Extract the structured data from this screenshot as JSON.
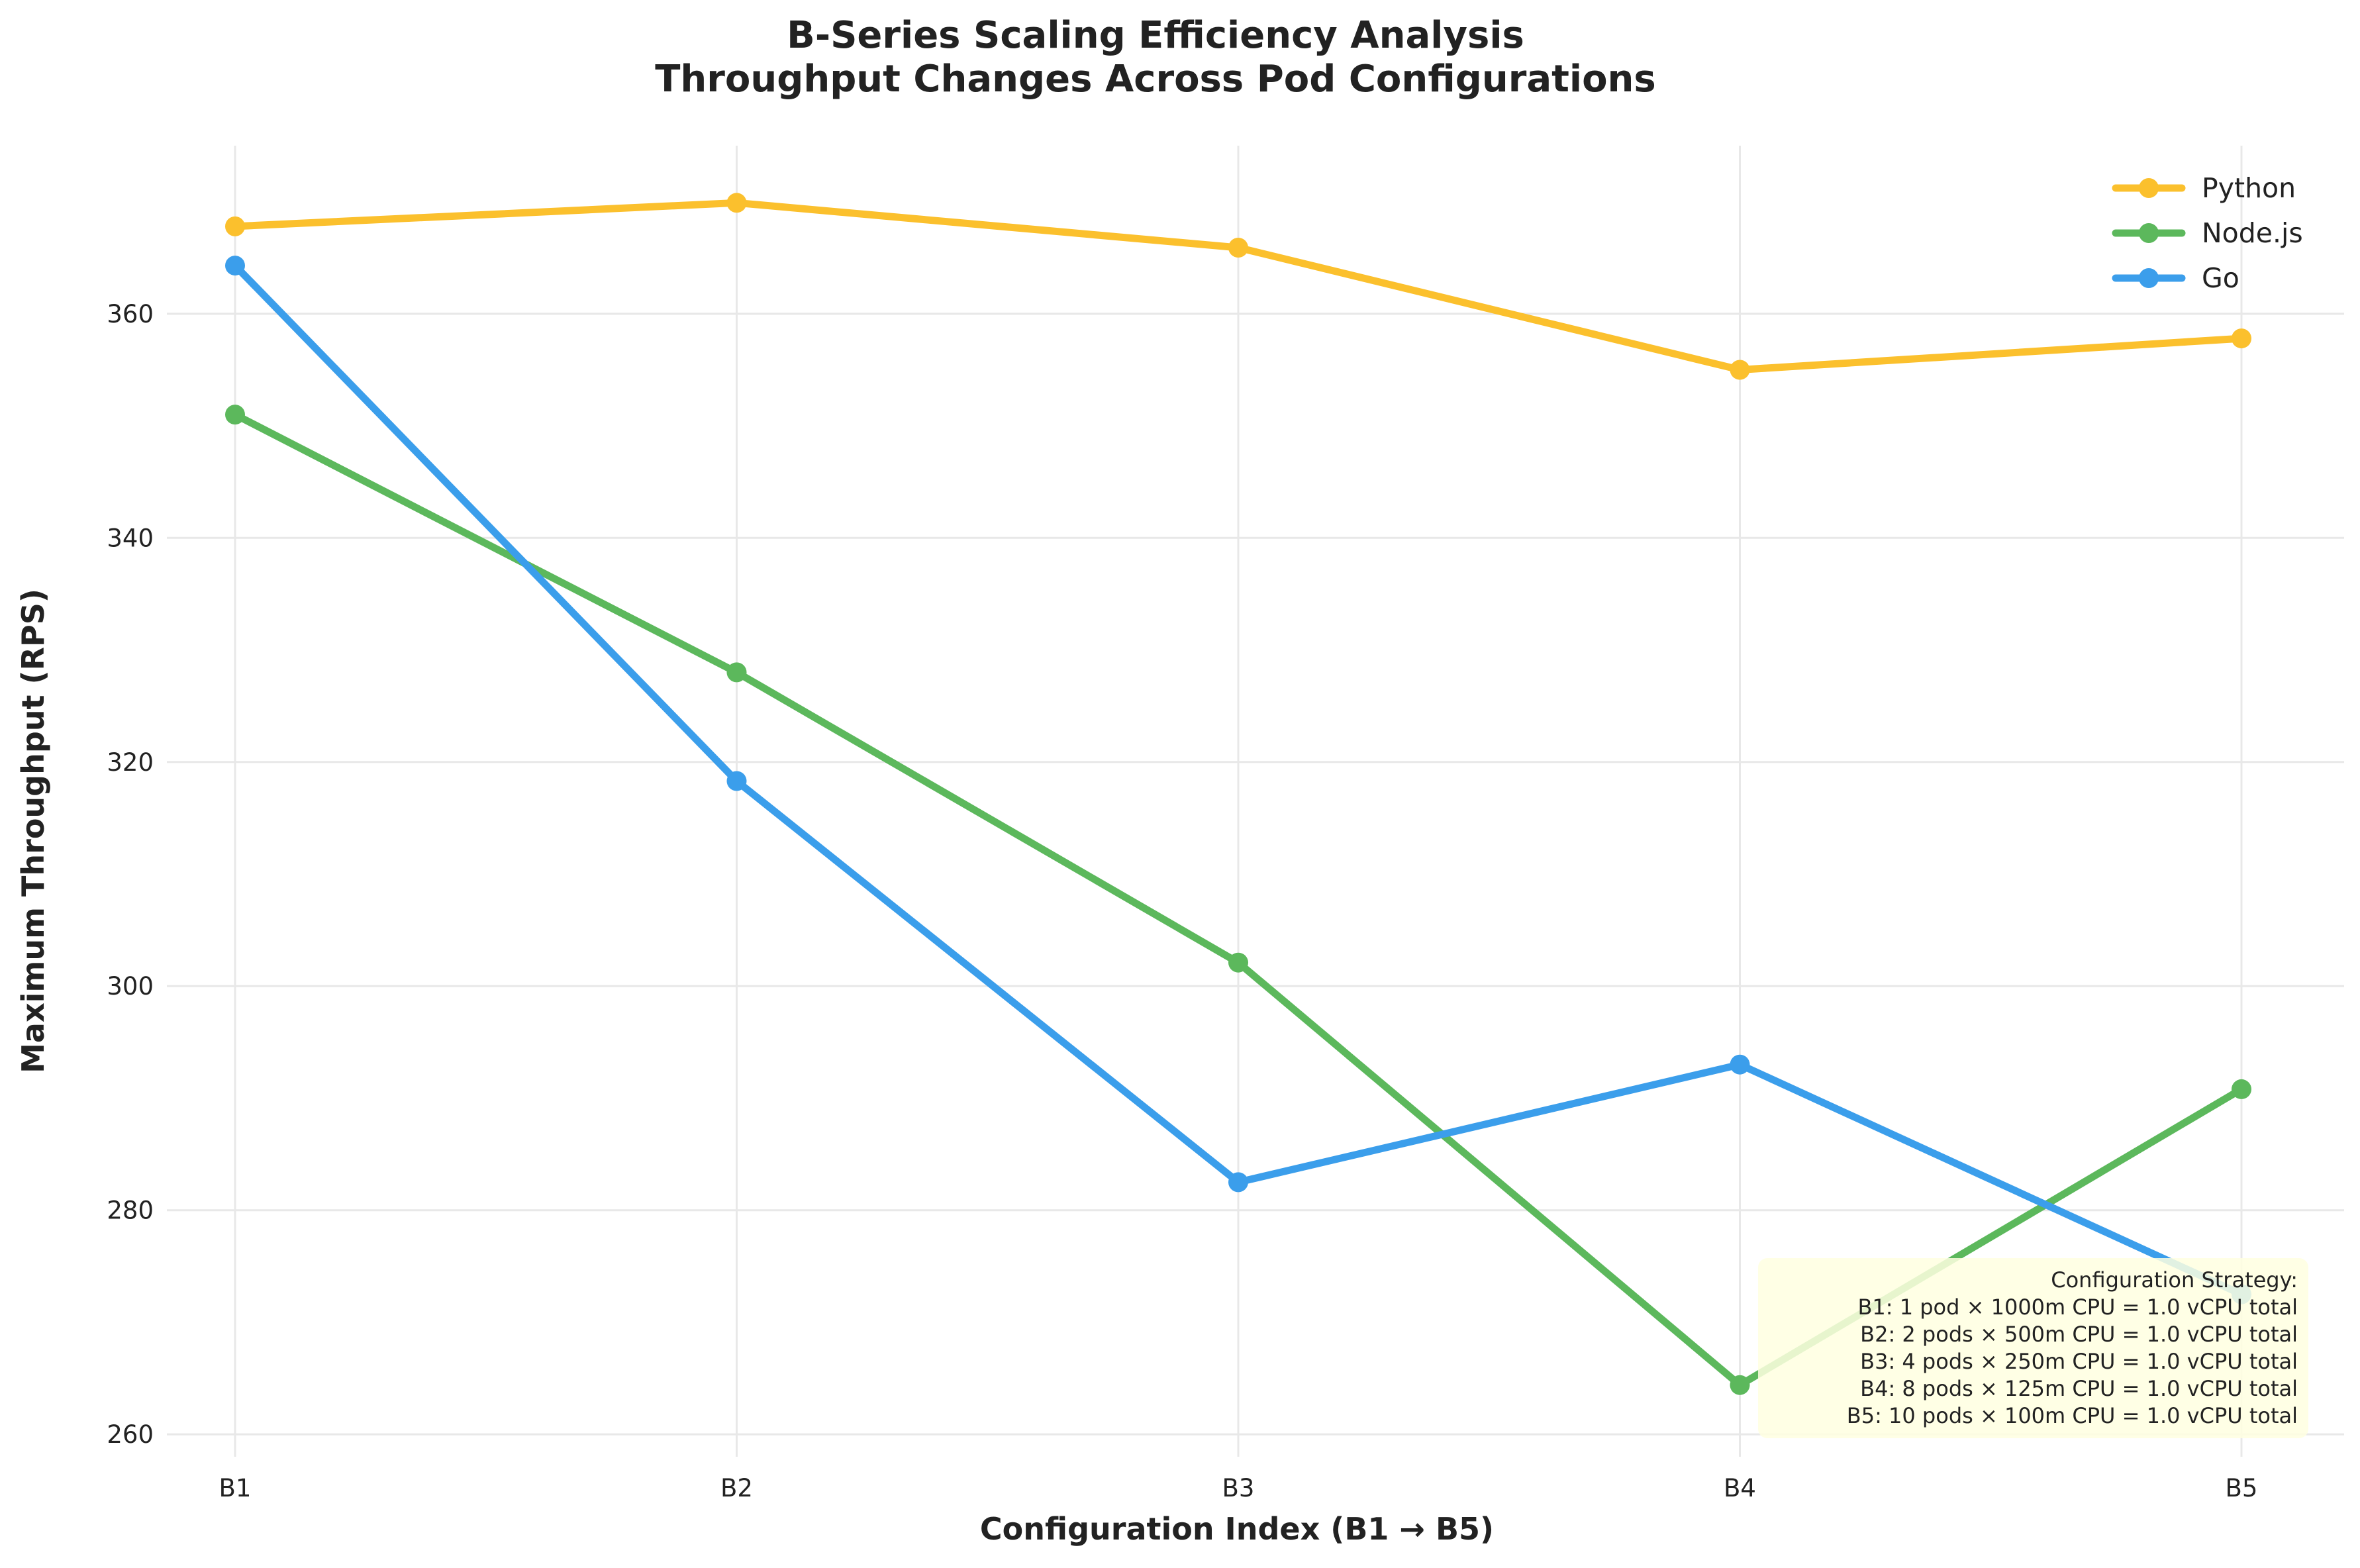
{
  "chart_data": {
    "type": "line",
    "title": "B-Series Scaling Efficiency Analysis",
    "subtitle": "Throughput Changes Across Pod Configurations",
    "xlabel": "Configuration Index (B1 → B5)",
    "ylabel": "Maximum Throughput (RPS)",
    "categories": [
      "B1",
      "B2",
      "B3",
      "B4",
      "B5"
    ],
    "ylim": [
      258,
      375
    ],
    "yticks": [
      260,
      280,
      300,
      320,
      340,
      360
    ],
    "grid": true,
    "legend_position": "top-right",
    "series": [
      {
        "name": "Python",
        "color": "#FBC02D",
        "values": [
          367.8,
          369.9,
          365.9,
          355.0,
          357.8
        ]
      },
      {
        "name": "Node.js",
        "color": "#5CB85C",
        "values": [
          351.0,
          328.0,
          302.1,
          264.4,
          290.8
        ]
      },
      {
        "name": "Go",
        "color": "#3B9EEB",
        "values": [
          364.3,
          318.3,
          282.5,
          293.0,
          272.5
        ]
      }
    ],
    "annotation": {
      "background": "#FFFFE0",
      "lines": [
        "Configuration Strategy:",
        "B1: 1 pod × 1000m CPU = 1.0 vCPU total",
        "B2: 2 pods × 500m CPU = 1.0 vCPU total",
        "B3: 4 pods × 250m CPU = 1.0 vCPU total",
        "B4: 8 pods × 125m CPU = 1.0 vCPU total",
        "B5: 10 pods × 100m CPU = 1.0 vCPU total"
      ]
    }
  }
}
